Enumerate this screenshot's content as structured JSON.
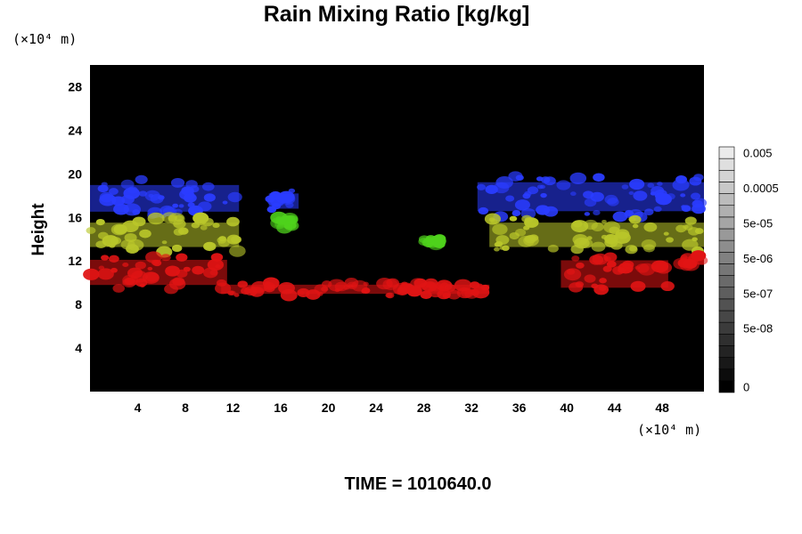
{
  "chart_data": {
    "type": "heatmap",
    "title": "Rain Mixing Ratio [kg/kg]",
    "ylabel": "Height",
    "y_unit_label": "(×10⁴ m)",
    "x_unit_label": "(×10⁴ m)",
    "xlim": [
      0,
      51.5
    ],
    "ylim": [
      0,
      30
    ],
    "x_ticks": [
      4,
      8,
      12,
      16,
      20,
      24,
      28,
      32,
      36,
      40,
      44,
      48
    ],
    "y_ticks": [
      4,
      8,
      12,
      16,
      20,
      24,
      28
    ],
    "background_color": "#000000",
    "colorbar": {
      "labels": [
        {
          "text": "0.005",
          "level": 20
        },
        {
          "text": "0.0005",
          "level": 17
        },
        {
          "text": "5e-05",
          "level": 14
        },
        {
          "text": "5e-06",
          "level": 11
        },
        {
          "text": "5e-07",
          "level": 8
        },
        {
          "text": "5e-08",
          "level": 5
        },
        {
          "text": "0",
          "level": 0
        }
      ],
      "levels": 21
    },
    "layer_colors": {
      "blue": "#2a3cff",
      "green": "#4fd21c",
      "yellow": "#b9c62a",
      "red": "#e01414"
    },
    "bands": [
      {
        "layer": "blue",
        "x": [
          0,
          12.5
        ],
        "y": [
          16,
          19.5
        ]
      },
      {
        "layer": "blue",
        "x": [
          15,
          17.5
        ],
        "y": [
          16.5,
          18.5
        ]
      },
      {
        "layer": "blue",
        "x": [
          32.5,
          51.5
        ],
        "y": [
          16,
          19.8
        ]
      },
      {
        "layer": "yellow",
        "x": [
          0,
          12.5
        ],
        "y": [
          12.8,
          16
        ]
      },
      {
        "layer": "green",
        "x": [
          15.5,
          17
        ],
        "y": [
          15,
          16
        ]
      },
      {
        "layer": "green",
        "x": [
          28,
          29.5
        ],
        "y": [
          13.3,
          14.2
        ]
      },
      {
        "layer": "yellow",
        "x": [
          33.5,
          51.5
        ],
        "y": [
          12.8,
          16
        ]
      },
      {
        "layer": "red",
        "x": [
          0,
          11.5
        ],
        "y": [
          9.3,
          12.6
        ]
      },
      {
        "layer": "red",
        "x": [
          11,
          33.5
        ],
        "y": [
          8.8,
          10
        ]
      },
      {
        "layer": "red",
        "x": [
          39.5,
          48.5
        ],
        "y": [
          9,
          12.6
        ]
      },
      {
        "layer": "red",
        "x": [
          49.5,
          51.5
        ],
        "y": [
          11.5,
          12.5
        ]
      }
    ]
  },
  "footer": {
    "time_label": "TIME = 1010640.0"
  }
}
